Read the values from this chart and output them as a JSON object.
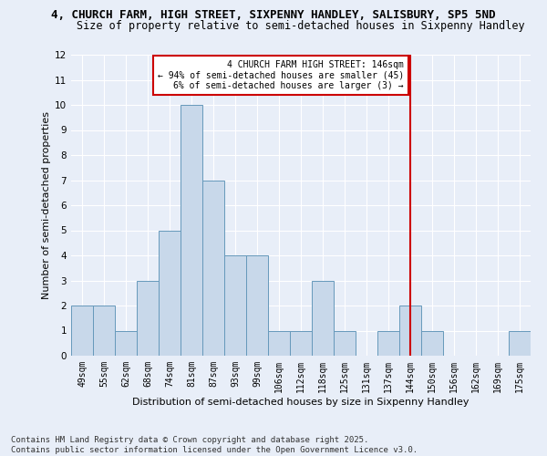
{
  "title_line1": "4, CHURCH FARM, HIGH STREET, SIXPENNY HANDLEY, SALISBURY, SP5 5ND",
  "title_line2": "Size of property relative to semi-detached houses in Sixpenny Handley",
  "xlabel": "Distribution of semi-detached houses by size in Sixpenny Handley",
  "ylabel": "Number of semi-detached properties",
  "categories": [
    "49sqm",
    "55sqm",
    "62sqm",
    "68sqm",
    "74sqm",
    "81sqm",
    "87sqm",
    "93sqm",
    "99sqm",
    "106sqm",
    "112sqm",
    "118sqm",
    "125sqm",
    "131sqm",
    "137sqm",
    "144sqm",
    "150sqm",
    "156sqm",
    "162sqm",
    "169sqm",
    "175sqm"
  ],
  "values": [
    2,
    2,
    1,
    3,
    5,
    10,
    7,
    4,
    4,
    1,
    1,
    3,
    1,
    0,
    1,
    2,
    1,
    0,
    0,
    0,
    1
  ],
  "bar_color": "#c8d8ea",
  "bar_edge_color": "#6699bb",
  "vline_x_index": 15,
  "vline_color": "#cc0000",
  "ylim": [
    0,
    12
  ],
  "yticks": [
    0,
    1,
    2,
    3,
    4,
    5,
    6,
    7,
    8,
    9,
    10,
    11,
    12
  ],
  "annotation_title": "4 CHURCH FARM HIGH STREET: 146sqm",
  "annotation_line2": "← 94% of semi-detached houses are smaller (45)",
  "annotation_line3": "6% of semi-detached houses are larger (3) →",
  "annotation_box_color": "#cc0000",
  "footer": "Contains HM Land Registry data © Crown copyright and database right 2025.\nContains public sector information licensed under the Open Government Licence v3.0.",
  "background_color": "#e8eef8",
  "plot_bg_color": "#e8eef8",
  "grid_color": "#ffffff",
  "title_fontsize": 9,
  "subtitle_fontsize": 8.5,
  "axis_label_fontsize": 8,
  "tick_fontsize": 7,
  "footer_fontsize": 6.5,
  "annotation_fontsize": 7
}
